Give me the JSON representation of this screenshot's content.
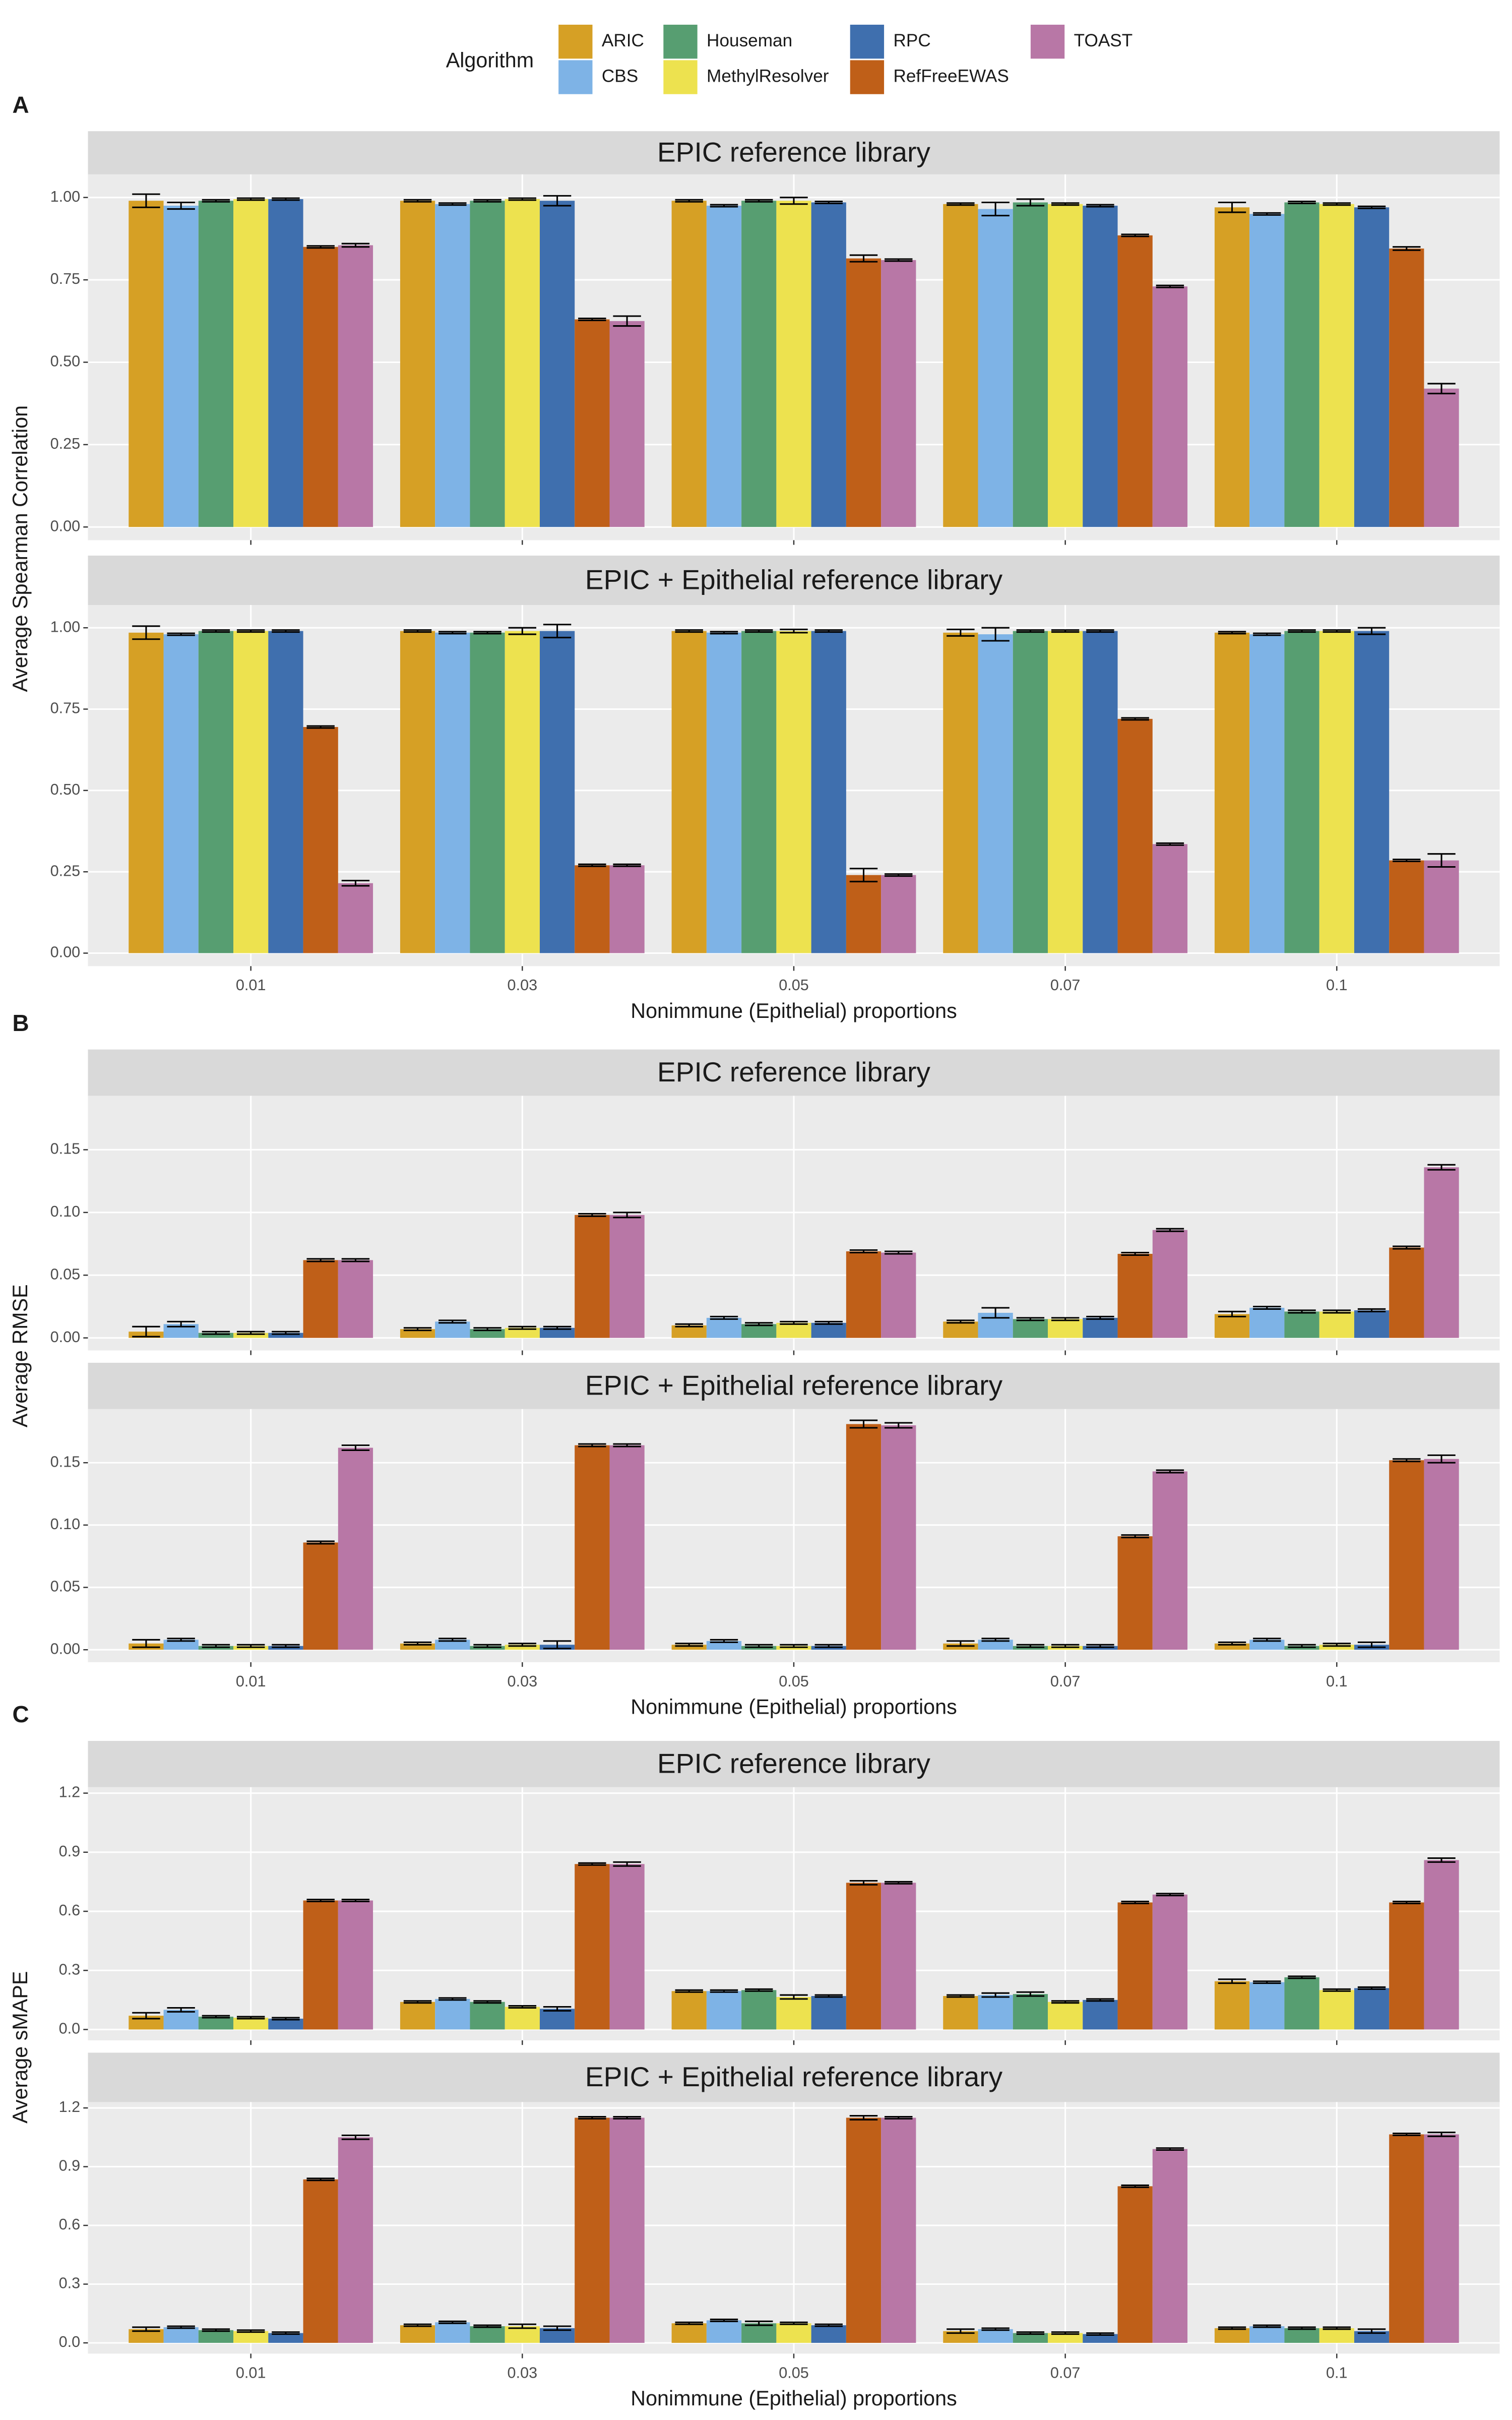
{
  "legend_title": "Algorithm",
  "chart_data": [
    {
      "type": "bar",
      "panel": "A",
      "title": "EPIC reference library",
      "ylabel": "Average Spearman Correlation",
      "categories": [
        "0.01",
        "0.03",
        "0.05",
        "0.07",
        "0.1"
      ],
      "ylim": [
        -0.04,
        1.07
      ],
      "yticks": [
        {
          "value": 0,
          "label": "0.00"
        },
        {
          "value": 0.25,
          "label": "0.25"
        },
        {
          "value": 0.5,
          "label": "0.50"
        },
        {
          "value": 0.75,
          "label": "0.75"
        },
        {
          "value": 1,
          "label": "1.00"
        }
      ],
      "grid": true,
      "series": [
        {
          "name": "ARIC",
          "color": "#d6a025",
          "values": [
            0.99,
            0.99,
            0.99,
            0.98,
            0.97
          ],
          "errors": [
            0.02,
            0.003,
            0.003,
            0.003,
            0.015
          ]
        },
        {
          "name": "CBS",
          "color": "#7eb3e6",
          "values": [
            0.975,
            0.98,
            0.975,
            0.965,
            0.95
          ],
          "errors": [
            0.01,
            0.003,
            0.003,
            0.02,
            0.003
          ]
        },
        {
          "name": "Houseman",
          "color": "#579e71",
          "values": [
            0.99,
            0.99,
            0.99,
            0.985,
            0.985
          ],
          "errors": [
            0.003,
            0.003,
            0.003,
            0.01,
            0.003
          ]
        },
        {
          "name": "MethylResolver",
          "color": "#ede24f",
          "values": [
            0.995,
            0.995,
            0.99,
            0.98,
            0.98
          ],
          "errors": [
            0.003,
            0.003,
            0.01,
            0.003,
            0.003
          ]
        },
        {
          "name": "RPC",
          "color": "#3f6fae",
          "values": [
            0.995,
            0.99,
            0.985,
            0.975,
            0.97
          ],
          "errors": [
            0.003,
            0.015,
            0.003,
            0.003,
            0.003
          ]
        },
        {
          "name": "RefFreeEWAS",
          "color": "#bf5f18",
          "values": [
            0.85,
            0.63,
            0.815,
            0.885,
            0.845
          ],
          "errors": [
            0.003,
            0.003,
            0.01,
            0.003,
            0.005
          ]
        },
        {
          "name": "TOAST",
          "color": "#b877a6",
          "values": [
            0.855,
            0.625,
            0.81,
            0.73,
            0.42
          ],
          "errors": [
            0.005,
            0.015,
            0.003,
            0.003,
            0.015
          ]
        }
      ]
    },
    {
      "type": "bar",
      "title": "EPIC + Epithelial reference library",
      "xlabel": "Nonimmune (Epithelial) proportions",
      "categories": [
        "0.01",
        "0.03",
        "0.05",
        "0.07",
        "0.1"
      ],
      "ylim": [
        -0.04,
        1.07
      ],
      "yticks": [
        {
          "value": 0,
          "label": "0.00"
        },
        {
          "value": 0.25,
          "label": "0.25"
        },
        {
          "value": 0.5,
          "label": "0.50"
        },
        {
          "value": 0.75,
          "label": "0.75"
        },
        {
          "value": 1,
          "label": "1.00"
        }
      ],
      "grid": true,
      "series": [
        {
          "name": "ARIC",
          "color": "#d6a025",
          "values": [
            0.985,
            0.99,
            0.99,
            0.985,
            0.985
          ],
          "errors": [
            0.02,
            0.003,
            0.003,
            0.01,
            0.003
          ]
        },
        {
          "name": "CBS",
          "color": "#7eb3e6",
          "values": [
            0.98,
            0.985,
            0.985,
            0.98,
            0.98
          ],
          "errors": [
            0.003,
            0.003,
            0.003,
            0.02,
            0.003
          ]
        },
        {
          "name": "Houseman",
          "color": "#579e71",
          "values": [
            0.99,
            0.985,
            0.99,
            0.99,
            0.99
          ],
          "errors": [
            0.003,
            0.003,
            0.003,
            0.003,
            0.003
          ]
        },
        {
          "name": "MethylResolver",
          "color": "#ede24f",
          "values": [
            0.99,
            0.99,
            0.99,
            0.99,
            0.99
          ],
          "errors": [
            0.003,
            0.01,
            0.005,
            0.003,
            0.003
          ]
        },
        {
          "name": "RPC",
          "color": "#3f6fae",
          "values": [
            0.99,
            0.99,
            0.99,
            0.99,
            0.99
          ],
          "errors": [
            0.003,
            0.02,
            0.003,
            0.003,
            0.01
          ]
        },
        {
          "name": "RefFreeEWAS",
          "color": "#bf5f18",
          "values": [
            0.695,
            0.27,
            0.24,
            0.72,
            0.285
          ],
          "errors": [
            0.003,
            0.003,
            0.02,
            0.003,
            0.003
          ]
        },
        {
          "name": "TOAST",
          "color": "#b877a6",
          "values": [
            0.215,
            0.27,
            0.24,
            0.335,
            0.285
          ],
          "errors": [
            0.008,
            0.003,
            0.003,
            0.003,
            0.02
          ]
        }
      ]
    },
    {
      "type": "bar",
      "panel": "B",
      "title": "EPIC reference library",
      "ylabel": "Average RMSE",
      "categories": [
        "0.01",
        "0.03",
        "0.05",
        "0.07",
        "0.1"
      ],
      "ylim": [
        -0.01,
        0.193
      ],
      "yticks": [
        {
          "value": 0,
          "label": "0.00"
        },
        {
          "value": 0.05,
          "label": "0.05"
        },
        {
          "value": 0.1,
          "label": "0.10"
        },
        0.15
      ],
      "grid": true,
      "series": [
        {
          "name": "ARIC",
          "color": "#d6a025",
          "values": [
            0.005,
            0.007,
            0.01,
            0.013,
            0.019
          ],
          "errors": [
            0.004,
            0.001,
            0.001,
            0.001,
            0.002
          ]
        },
        {
          "name": "CBS",
          "color": "#7eb3e6",
          "values": [
            0.011,
            0.013,
            0.016,
            0.02,
            0.024
          ],
          "errors": [
            0.002,
            0.001,
            0.001,
            0.004,
            0.001
          ]
        },
        {
          "name": "Houseman",
          "color": "#579e71",
          "values": [
            0.004,
            0.007,
            0.011,
            0.015,
            0.021
          ],
          "errors": [
            0.001,
            0.001,
            0.001,
            0.001,
            0.001
          ]
        },
        {
          "name": "MethylResolver",
          "color": "#ede24f",
          "values": [
            0.004,
            0.008,
            0.012,
            0.015,
            0.021
          ],
          "errors": [
            0.001,
            0.001,
            0.001,
            0.001,
            0.001
          ]
        },
        {
          "name": "RPC",
          "color": "#3f6fae",
          "values": [
            0.004,
            0.008,
            0.012,
            0.016,
            0.022
          ],
          "errors": [
            0.001,
            0.001,
            0.001,
            0.001,
            0.001
          ]
        },
        {
          "name": "RefFreeEWAS",
          "color": "#bf5f18",
          "values": [
            0.062,
            0.098,
            0.069,
            0.067,
            0.072
          ],
          "errors": [
            0.001,
            0.001,
            0.001,
            0.001,
            0.001
          ]
        },
        {
          "name": "TOAST",
          "color": "#b877a6",
          "values": [
            0.062,
            0.098,
            0.068,
            0.086,
            0.136
          ],
          "errors": [
            0.001,
            0.002,
            0.001,
            0.001,
            0.002
          ]
        }
      ]
    },
    {
      "type": "bar",
      "title": "EPIC + Epithelial reference library",
      "xlabel": "Nonimmune (Epithelial) proportions",
      "categories": [
        "0.01",
        "0.03",
        "0.05",
        "0.07",
        "0.1"
      ],
      "ylim": [
        -0.01,
        0.193
      ],
      "yticks": [
        {
          "value": 0,
          "label": "0.00"
        },
        {
          "value": 0.05,
          "label": "0.05"
        },
        {
          "value": 0.1,
          "label": "0.10"
        },
        0.15
      ],
      "grid": true,
      "series": [
        {
          "name": "ARIC",
          "color": "#d6a025",
          "values": [
            0.005,
            0.005,
            0.004,
            0.005,
            0.005
          ],
          "errors": [
            0.003,
            0.001,
            0.001,
            0.002,
            0.001
          ]
        },
        {
          "name": "CBS",
          "color": "#7eb3e6",
          "values": [
            0.008,
            0.008,
            0.007,
            0.008,
            0.008
          ],
          "errors": [
            0.001,
            0.001,
            0.001,
            0.001,
            0.001
          ]
        },
        {
          "name": "Houseman",
          "color": "#579e71",
          "values": [
            0.003,
            0.003,
            0.003,
            0.003,
            0.003
          ],
          "errors": [
            0.001,
            0.001,
            0.001,
            0.001,
            0.001
          ]
        },
        {
          "name": "MethylResolver",
          "color": "#ede24f",
          "values": [
            0.003,
            0.004,
            0.003,
            0.003,
            0.004
          ],
          "errors": [
            0.001,
            0.001,
            0.001,
            0.001,
            0.001
          ]
        },
        {
          "name": "RPC",
          "color": "#3f6fae",
          "values": [
            0.003,
            0.004,
            0.003,
            0.003,
            0.004
          ],
          "errors": [
            0.001,
            0.003,
            0.001,
            0.001,
            0.002
          ]
        },
        {
          "name": "RefFreeEWAS",
          "color": "#bf5f18",
          "values": [
            0.086,
            0.164,
            0.181,
            0.091,
            0.152
          ],
          "errors": [
            0.001,
            0.001,
            0.003,
            0.001,
            0.001
          ]
        },
        {
          "name": "TOAST",
          "color": "#b877a6",
          "values": [
            0.162,
            0.164,
            0.18,
            0.143,
            0.153
          ],
          "errors": [
            0.002,
            0.001,
            0.002,
            0.001,
            0.003
          ]
        }
      ]
    },
    {
      "type": "bar",
      "panel": "C",
      "title": "EPIC reference library",
      "ylabel": "Average sMAPE",
      "categories": [
        "0.01",
        "0.03",
        "0.05",
        "0.07",
        "0.1"
      ],
      "ylim": [
        -0.055,
        1.23
      ],
      "yticks": [
        {
          "value": 0,
          "label": "0.0"
        },
        0.3,
        0.6,
        0.9,
        1.2
      ],
      "grid": true,
      "series": [
        {
          "name": "ARIC",
          "color": "#d6a025",
          "values": [
            0.07,
            0.14,
            0.195,
            0.17,
            0.245
          ],
          "errors": [
            0.015,
            0.005,
            0.005,
            0.005,
            0.01
          ]
        },
        {
          "name": "CBS",
          "color": "#7eb3e6",
          "values": [
            0.1,
            0.155,
            0.195,
            0.175,
            0.24
          ],
          "errors": [
            0.01,
            0.005,
            0.005,
            0.01,
            0.005
          ]
        },
        {
          "name": "Houseman",
          "color": "#579e71",
          "values": [
            0.065,
            0.14,
            0.2,
            0.18,
            0.265
          ],
          "errors": [
            0.005,
            0.005,
            0.005,
            0.01,
            0.005
          ]
        },
        {
          "name": "MethylResolver",
          "color": "#ede24f",
          "values": [
            0.06,
            0.115,
            0.165,
            0.14,
            0.2
          ],
          "errors": [
            0.005,
            0.005,
            0.01,
            0.005,
            0.005
          ]
        },
        {
          "name": "RPC",
          "color": "#3f6fae",
          "values": [
            0.055,
            0.105,
            0.17,
            0.15,
            0.21
          ],
          "errors": [
            0.005,
            0.01,
            0.005,
            0.005,
            0.005
          ]
        },
        {
          "name": "RefFreeEWAS",
          "color": "#bf5f18",
          "values": [
            0.655,
            0.84,
            0.745,
            0.645,
            0.645
          ],
          "errors": [
            0.005,
            0.005,
            0.01,
            0.005,
            0.005
          ]
        },
        {
          "name": "TOAST",
          "color": "#b877a6",
          "values": [
            0.655,
            0.84,
            0.745,
            0.685,
            0.86
          ],
          "errors": [
            0.005,
            0.01,
            0.005,
            0.005,
            0.01
          ]
        }
      ]
    },
    {
      "type": "bar",
      "title": "EPIC + Epithelial reference library",
      "xlabel": "Nonimmune (Epithelial) proportions",
      "categories": [
        "0.01",
        "0.03",
        "0.05",
        "0.07",
        "0.1"
      ],
      "ylim": [
        -0.055,
        1.23
      ],
      "yticks": [
        {
          "value": 0,
          "label": "0.0"
        },
        0.3,
        0.6,
        0.9,
        1.2
      ],
      "grid": true,
      "series": [
        {
          "name": "ARIC",
          "color": "#d6a025",
          "values": [
            0.07,
            0.09,
            0.1,
            0.06,
            0.075
          ],
          "errors": [
            0.01,
            0.005,
            0.005,
            0.01,
            0.005
          ]
        },
        {
          "name": "CBS",
          "color": "#7eb3e6",
          "values": [
            0.08,
            0.105,
            0.115,
            0.07,
            0.085
          ],
          "errors": [
            0.005,
            0.005,
            0.005,
            0.005,
            0.005
          ]
        },
        {
          "name": "Houseman",
          "color": "#579e71",
          "values": [
            0.065,
            0.085,
            0.1,
            0.05,
            0.075
          ],
          "errors": [
            0.005,
            0.005,
            0.01,
            0.005,
            0.005
          ]
        },
        {
          "name": "MethylResolver",
          "color": "#ede24f",
          "values": [
            0.06,
            0.085,
            0.1,
            0.05,
            0.075
          ],
          "errors": [
            0.005,
            0.01,
            0.005,
            0.005,
            0.005
          ]
        },
        {
          "name": "RPC",
          "color": "#3f6fae",
          "values": [
            0.05,
            0.075,
            0.09,
            0.045,
            0.06
          ],
          "errors": [
            0.005,
            0.01,
            0.005,
            0.005,
            0.01
          ]
        },
        {
          "name": "RefFreeEWAS",
          "color": "#bf5f18",
          "values": [
            0.835,
            1.15,
            1.15,
            0.8,
            1.065
          ],
          "errors": [
            0.005,
            0.005,
            0.01,
            0.005,
            0.005
          ]
        },
        {
          "name": "TOAST",
          "color": "#b877a6",
          "values": [
            1.05,
            1.15,
            1.15,
            0.99,
            1.065
          ],
          "errors": [
            0.01,
            0.005,
            0.005,
            0.005,
            0.01
          ]
        }
      ]
    }
  ]
}
